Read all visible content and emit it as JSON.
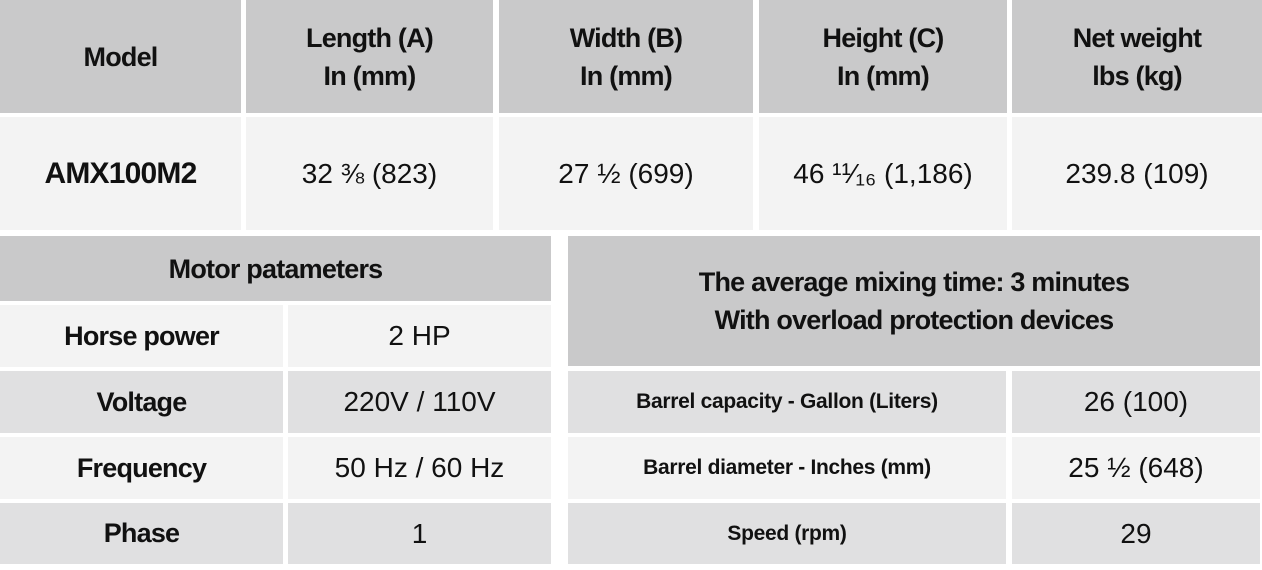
{
  "dimensions_table": {
    "headers": [
      [
        "Model"
      ],
      [
        "Length (A)",
        "In (mm)"
      ],
      [
        "Width (B)",
        "In (mm)"
      ],
      [
        "Height (C)",
        "In (mm)"
      ],
      [
        "Net weight",
        "lbs (kg)"
      ]
    ],
    "row": [
      "AMX100M2",
      "32 ⅜ (823)",
      "27 ½ (699)",
      "46 ¹¹⁄₁₆ (1,186)",
      "239.8 (109)"
    ]
  },
  "motor_table": {
    "title": "Motor patameters",
    "rows": [
      [
        "Horse power",
        "2 HP"
      ],
      [
        "Voltage",
        "220V / 110V"
      ],
      [
        "Frequency",
        "50 Hz / 60 Hz"
      ],
      [
        "Phase",
        "1"
      ]
    ]
  },
  "barrel_table": {
    "notes": [
      "The average mixing time: 3 minutes",
      "With overload protection devices"
    ],
    "rows": [
      [
        "Barrel capacity - Gallon (Liters)",
        "26 (100)"
      ],
      [
        "Barrel diameter - Inches (mm)",
        "25 ½ (648)"
      ],
      [
        "Speed (rpm)",
        "29"
      ]
    ]
  }
}
